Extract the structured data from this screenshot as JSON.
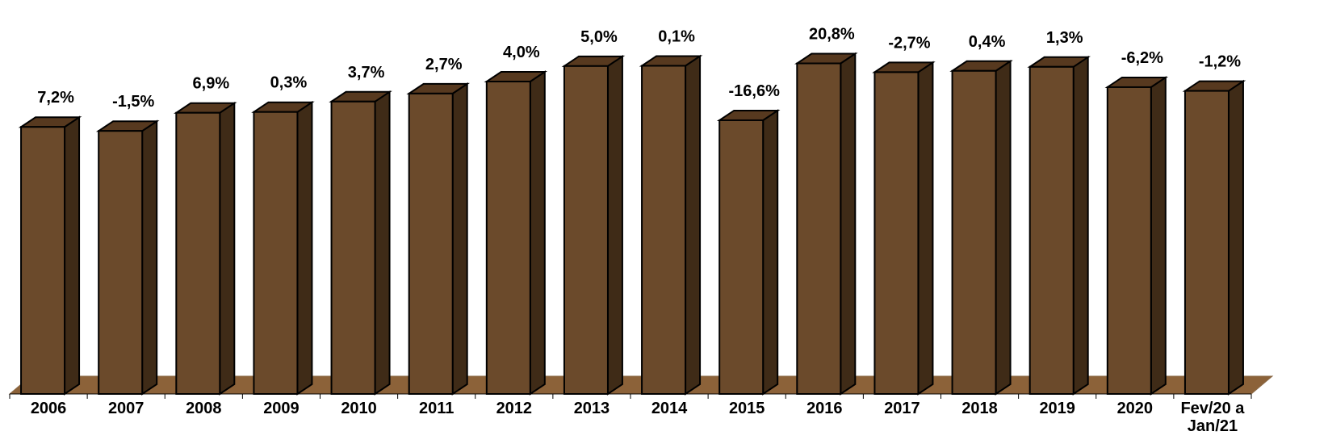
{
  "chart_data": {
    "type": "bar",
    "style": "3d-column",
    "categories": [
      "2006",
      "2007",
      "2008",
      "2009",
      "2010",
      "2011",
      "2012",
      "2013",
      "2014",
      "2015",
      "2016",
      "2017",
      "2018",
      "2019",
      "2020",
      "Fev/20 a Jan/21"
    ],
    "category_lines": [
      [
        "2006"
      ],
      [
        "2007"
      ],
      [
        "2008"
      ],
      [
        "2009"
      ],
      [
        "2010"
      ],
      [
        "2011"
      ],
      [
        "2012"
      ],
      [
        "2013"
      ],
      [
        "2014"
      ],
      [
        "2015"
      ],
      [
        "2016"
      ],
      [
        "2017"
      ],
      [
        "2018"
      ],
      [
        "2019"
      ],
      [
        "2020"
      ],
      [
        "Fev/20 a",
        "Jan/21"
      ]
    ],
    "values": [
      100,
      98.5,
      105.3,
      105.6,
      109.5,
      112.5,
      117.0,
      122.8,
      122.9,
      102.5,
      123.8,
      120.5,
      121.0,
      122.5,
      114.9,
      113.5
    ],
    "data_labels": [
      "7,2%",
      "-1,5%",
      "6,9%",
      "0,3%",
      "3,7%",
      "2,7%",
      "4,0%",
      "5,0%",
      "0,1%",
      "-16,6%",
      "20,8%",
      "-2,7%",
      "0,4%",
      "1,3%",
      "-6,2%",
      "-1,2%"
    ],
    "title": "",
    "xlabel": "",
    "ylabel": "",
    "ylim": [
      0,
      130
    ],
    "grid": false,
    "legend": "none",
    "colors": {
      "bar_front": "#6b4a2b",
      "bar_side": "#3f2b17",
      "bar_top": "#57391f",
      "floor": "#8c6239"
    }
  }
}
